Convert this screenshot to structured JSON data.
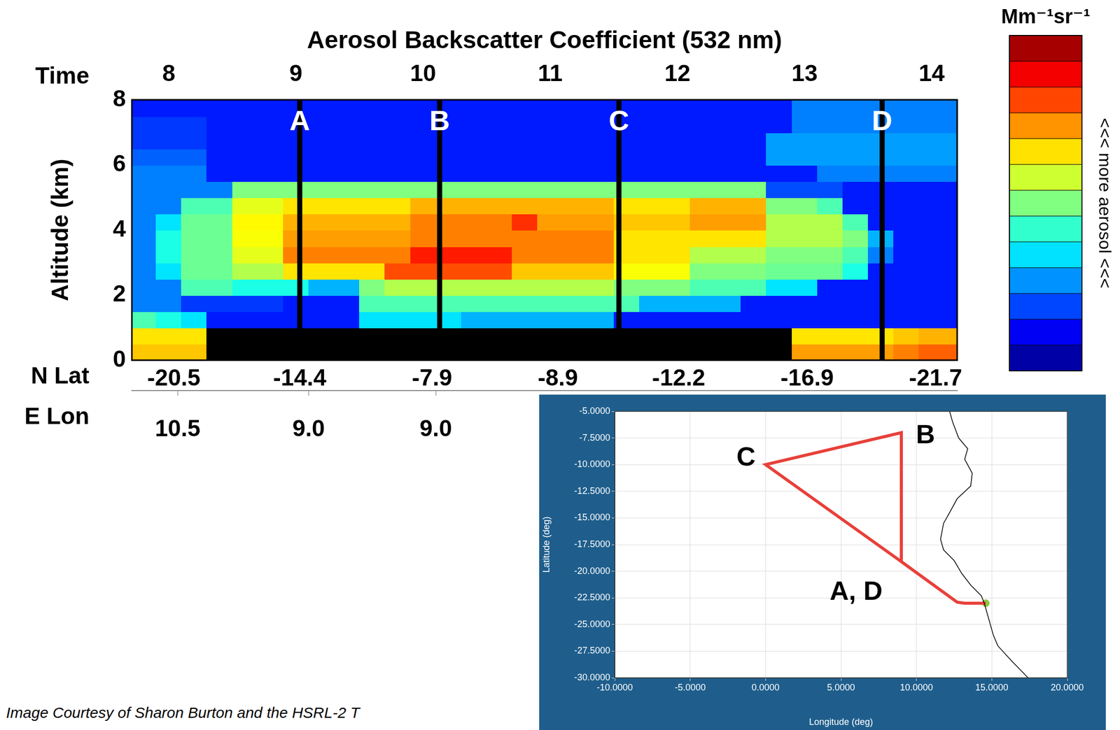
{
  "chart_data": [
    {
      "type": "heatmap",
      "title": "Aerosol Backscatter Coefficient (532 nm)",
      "xlabel": "Time",
      "ylabel": "Altitude (km)",
      "xlim": [
        7.71,
        14.2
      ],
      "xticks": [
        8,
        9,
        10,
        11,
        12,
        13,
        14
      ],
      "ylim": [
        0,
        8
      ],
      "yticks": [
        0,
        2,
        4,
        6,
        8
      ],
      "grid": false,
      "lat_labels": {
        "label": "N Lat",
        "ticks": [
          {
            "value": 8.04,
            "label": "-20.5"
          },
          {
            "value": 9.03,
            "label": "-14.4"
          },
          {
            "value": 10.07,
            "label": "-7.9"
          },
          {
            "value": 11.06,
            "label": "-8.9"
          },
          {
            "value": 12.01,
            "label": "-12.2"
          },
          {
            "value": 13.02,
            "label": "-16.9"
          },
          {
            "value": 14.03,
            "label": "-21.7"
          }
        ]
      },
      "lon_labels": {
        "label": "E Lon",
        "ticks": [
          {
            "value": 8.07,
            "label": "10.5"
          },
          {
            "value": 9.1,
            "label": "9.0"
          },
          {
            "value": 10.1,
            "label": "9.0"
          }
        ]
      },
      "markers": [
        {
          "label": "A",
          "x": 9.03,
          "y": 7.3
        },
        {
          "label": "B",
          "x": 10.13,
          "y": 7.3
        },
        {
          "label": "C",
          "x": 11.54,
          "y": 7.3
        },
        {
          "label": "D",
          "x": 13.61,
          "y": 7.3
        }
      ],
      "colorbar": {
        "label": "Mm⁻¹sr⁻¹",
        "side_label": "<<< more aerosol <<<",
        "lim": [
          0,
          10
        ]
      },
      "cells": {
        "x": [
          7.8,
          8.0,
          8.2,
          8.4,
          8.6,
          8.8,
          9.0,
          9.2,
          9.4,
          9.6,
          9.8,
          10.0,
          10.2,
          10.4,
          10.6,
          10.8,
          11.0,
          11.2,
          11.4,
          11.6,
          11.8,
          12.0,
          12.2,
          12.4,
          12.6,
          12.8,
          13.0,
          13.2,
          13.4,
          13.6,
          13.8,
          14.0
        ],
        "y": [
          0.25,
          0.75,
          1.25,
          1.75,
          2.25,
          2.75,
          3.25,
          3.75,
          4.25,
          4.75,
          5.25,
          5.75,
          6.25,
          6.75,
          7.25,
          7.75
        ],
        "values": [
          [
            6.8,
            6.8,
            6.8,
            null,
            null,
            null,
            null,
            null,
            null,
            null,
            null,
            null,
            null,
            null,
            null,
            null,
            null,
            null,
            null,
            null,
            null,
            null,
            null,
            null,
            null,
            null,
            7.2,
            7.2,
            7.2,
            7.2,
            7.5,
            7.8
          ],
          [
            6.5,
            6.5,
            6.5,
            null,
            null,
            null,
            null,
            null,
            null,
            null,
            null,
            null,
            null,
            null,
            null,
            null,
            null,
            null,
            null,
            null,
            null,
            null,
            null,
            null,
            null,
            null,
            6.5,
            6.5,
            6.5,
            6.5,
            6.8,
            7.0
          ],
          [
            4.5,
            4.0,
            3.5,
            1.5,
            1.5,
            1.5,
            1.5,
            1.5,
            1.5,
            3.5,
            3.5,
            3.5,
            3.5,
            3.0,
            3.0,
            3.0,
            3.0,
            3.0,
            3.0,
            1.5,
            1.5,
            1.5,
            1.5,
            1.5,
            1.5,
            1.5,
            1.5,
            1.5,
            1.5,
            1.5,
            1.5,
            1.5
          ],
          [
            2.5,
            2.5,
            1.8,
            1.8,
            1.8,
            1.8,
            1.5,
            1.5,
            1.5,
            4.5,
            4.5,
            4.5,
            4.5,
            4.5,
            4.5,
            4.5,
            4.5,
            4.5,
            4.5,
            4.5,
            3.0,
            3.0,
            3.0,
            3.0,
            1.5,
            1.5,
            1.5,
            1.5,
            1.5,
            1.5,
            1.5,
            1.5
          ],
          [
            2.5,
            2.5,
            4.5,
            4.5,
            4.0,
            4.0,
            4.0,
            3.0,
            3.0,
            5.0,
            5.5,
            5.5,
            5.5,
            5.5,
            5.5,
            5.5,
            5.5,
            5.5,
            5.5,
            5.0,
            5.0,
            5.0,
            4.5,
            4.5,
            4.5,
            3.5,
            3.5,
            1.5,
            1.5,
            1.5,
            1.5,
            1.5
          ],
          [
            2.5,
            3.5,
            4.8,
            4.8,
            5.5,
            5.5,
            6.5,
            6.5,
            6.5,
            6.5,
            8.0,
            8.0,
            8.0,
            8.0,
            8.0,
            6.8,
            6.8,
            6.8,
            6.8,
            6.2,
            6.2,
            6.2,
            5.0,
            5.0,
            5.0,
            4.8,
            4.8,
            4.8,
            4.0,
            1.5,
            1.5,
            1.5
          ],
          [
            2.5,
            4.0,
            4.8,
            4.8,
            6.0,
            6.0,
            7.5,
            7.5,
            7.5,
            7.5,
            7.5,
            8.5,
            8.5,
            8.5,
            8.5,
            7.5,
            7.5,
            7.5,
            7.5,
            6.5,
            6.5,
            6.5,
            5.5,
            5.5,
            5.5,
            5.0,
            5.0,
            5.0,
            4.5,
            2.5,
            1.5,
            1.5
          ],
          [
            2.5,
            4.0,
            4.8,
            4.8,
            6.2,
            6.2,
            7.2,
            7.2,
            7.2,
            7.2,
            7.2,
            7.5,
            7.5,
            7.5,
            7.5,
            7.5,
            7.5,
            7.5,
            7.5,
            6.5,
            6.5,
            6.5,
            6.5,
            6.5,
            6.5,
            5.5,
            5.5,
            5.5,
            5.0,
            3.0,
            1.5,
            1.5
          ],
          [
            2.5,
            3.5,
            4.8,
            4.8,
            6.3,
            6.3,
            7.0,
            7.0,
            7.0,
            7.0,
            7.0,
            7.5,
            7.5,
            7.5,
            7.5,
            8.3,
            7.2,
            7.2,
            7.2,
            6.8,
            6.8,
            6.8,
            7.2,
            7.2,
            7.2,
            5.5,
            5.5,
            5.5,
            4.5,
            1.5,
            1.5,
            1.5
          ],
          [
            2.5,
            2.5,
            4.5,
            4.5,
            6.0,
            6.0,
            6.5,
            6.5,
            6.5,
            6.5,
            6.5,
            7.0,
            7.0,
            7.0,
            7.0,
            7.0,
            7.0,
            7.0,
            7.0,
            6.5,
            6.5,
            6.5,
            7.0,
            7.0,
            7.0,
            5.0,
            5.0,
            4.5,
            1.5,
            1.5,
            1.5,
            1.5
          ],
          [
            2.5,
            2.5,
            2.5,
            2.5,
            5.0,
            5.0,
            5.0,
            5.0,
            5.0,
            5.0,
            5.0,
            5.0,
            5.0,
            5.0,
            5.0,
            5.0,
            5.0,
            5.0,
            5.0,
            5.0,
            5.0,
            5.0,
            5.0,
            5.0,
            5.0,
            2.0,
            2.0,
            2.0,
            1.5,
            1.5,
            1.5,
            1.5
          ],
          [
            2.5,
            2.5,
            2.5,
            1.5,
            1.5,
            1.5,
            1.5,
            1.5,
            1.5,
            1.5,
            1.5,
            1.5,
            1.5,
            1.5,
            1.5,
            1.5,
            1.5,
            1.5,
            1.5,
            1.5,
            1.5,
            1.5,
            1.5,
            1.5,
            1.5,
            1.5,
            1.5,
            2.5,
            2.5,
            2.5,
            2.5,
            2.5
          ],
          [
            2.2,
            2.2,
            2.2,
            1.5,
            1.5,
            1.5,
            1.5,
            1.5,
            1.5,
            1.5,
            1.5,
            1.5,
            1.5,
            1.5,
            1.5,
            1.5,
            1.5,
            1.5,
            1.5,
            1.5,
            1.5,
            1.5,
            1.5,
            1.5,
            1.5,
            2.8,
            2.8,
            2.8,
            2.8,
            2.8,
            2.8,
            2.8
          ],
          [
            1.8,
            1.8,
            1.8,
            1.5,
            1.5,
            1.5,
            1.5,
            1.5,
            1.5,
            1.5,
            1.5,
            1.5,
            1.5,
            1.5,
            1.5,
            1.5,
            1.5,
            1.5,
            1.5,
            1.5,
            1.5,
            1.5,
            1.5,
            1.5,
            1.5,
            2.8,
            2.8,
            2.8,
            2.8,
            2.8,
            2.8,
            2.8
          ],
          [
            1.8,
            1.8,
            1.8,
            1.5,
            1.5,
            1.5,
            1.5,
            1.5,
            1.5,
            1.5,
            1.5,
            1.5,
            1.5,
            1.5,
            1.5,
            1.5,
            1.5,
            1.5,
            1.5,
            1.5,
            1.5,
            1.5,
            1.5,
            1.5,
            1.5,
            1.5,
            2.5,
            2.5,
            2.5,
            2.5,
            2.5,
            2.5
          ],
          [
            1.5,
            1.5,
            1.5,
            1.5,
            1.5,
            1.5,
            1.5,
            1.5,
            1.5,
            1.5,
            1.5,
            1.5,
            1.5,
            1.5,
            1.5,
            1.5,
            1.5,
            1.5,
            1.5,
            1.5,
            1.5,
            1.5,
            1.5,
            1.5,
            1.5,
            1.5,
            2.5,
            2.5,
            2.5,
            2.5,
            2.5,
            2.5
          ]
        ]
      }
    },
    {
      "type": "line",
      "xlabel": "Longitude (deg)",
      "ylabel": "Latitude (deg)",
      "xlim": [
        -10,
        20
      ],
      "xticks": [
        {
          "value": -10,
          "label": "-10.0000"
        },
        {
          "value": -5,
          "label": "-5.0000"
        },
        {
          "value": 0,
          "label": "0.0000"
        },
        {
          "value": 5,
          "label": "5.0000"
        },
        {
          "value": 10,
          "label": "10.0000"
        },
        {
          "value": 15,
          "label": "15.0000"
        },
        {
          "value": 20,
          "label": "20.0000"
        }
      ],
      "ylim": [
        -30,
        -5
      ],
      "yticks": [
        {
          "value": -30,
          "label": "-30.0000"
        },
        {
          "value": -27.5,
          "label": "-27.5000"
        },
        {
          "value": -25,
          "label": "-25.0000"
        },
        {
          "value": -22.5,
          "label": "-22.5000"
        },
        {
          "value": -20,
          "label": "-20.0000"
        },
        {
          "value": -17.5,
          "label": "-17.5000"
        },
        {
          "value": -15,
          "label": "-15.0000"
        },
        {
          "value": -12.5,
          "label": "-12.5000"
        },
        {
          "value": -10,
          "label": "-10.0000"
        },
        {
          "value": -7.5,
          "label": "-7.5000"
        },
        {
          "value": -5,
          "label": "-5.0000"
        }
      ],
      "grid": true,
      "coastline": {
        "color": "#000000",
        "x": [
          12.2,
          12.4,
          12.8,
          13.4,
          13.2,
          13.7,
          13.6,
          12.7,
          12.2,
          11.8,
          11.6,
          11.8,
          12.5,
          13.0,
          13.6,
          14.3,
          14.5,
          14.8,
          15.1,
          15.4,
          16.3,
          17.2,
          17.4
        ],
        "y": [
          -5.0,
          -6.0,
          -7.5,
          -8.5,
          -9.5,
          -10.8,
          -12.0,
          -13.2,
          -14.5,
          -15.5,
          -17.0,
          -18.0,
          -19.0,
          -20.2,
          -21.3,
          -22.3,
          -23.0,
          -24.5,
          -26.0,
          -27.0,
          -28.4,
          -29.7,
          -30.0
        ]
      },
      "track": {
        "color": "#e8403a",
        "x": [
          14.6,
          13.2,
          12.7,
          9.0,
          9.0,
          0.0,
          9.0,
          12.7,
          13.2,
          14.6
        ],
        "y": [
          -23.0,
          -23.0,
          -22.9,
          -19.1,
          -7.0,
          -10.0,
          -19.1,
          -22.9,
          -23.0,
          -23.0
        ]
      },
      "start": {
        "color": "#8cc63f",
        "x": 14.6,
        "y": -23.0
      },
      "labels": [
        {
          "text": "B",
          "x": 10.6,
          "y": -7.3
        },
        {
          "text": "C",
          "x": -1.3,
          "y": -9.4
        },
        {
          "text": "A, D",
          "x": 6.0,
          "y": -22.0
        }
      ]
    }
  ],
  "caption": "Image Courtesy of Sharon Burton and the HSRL-2 T"
}
